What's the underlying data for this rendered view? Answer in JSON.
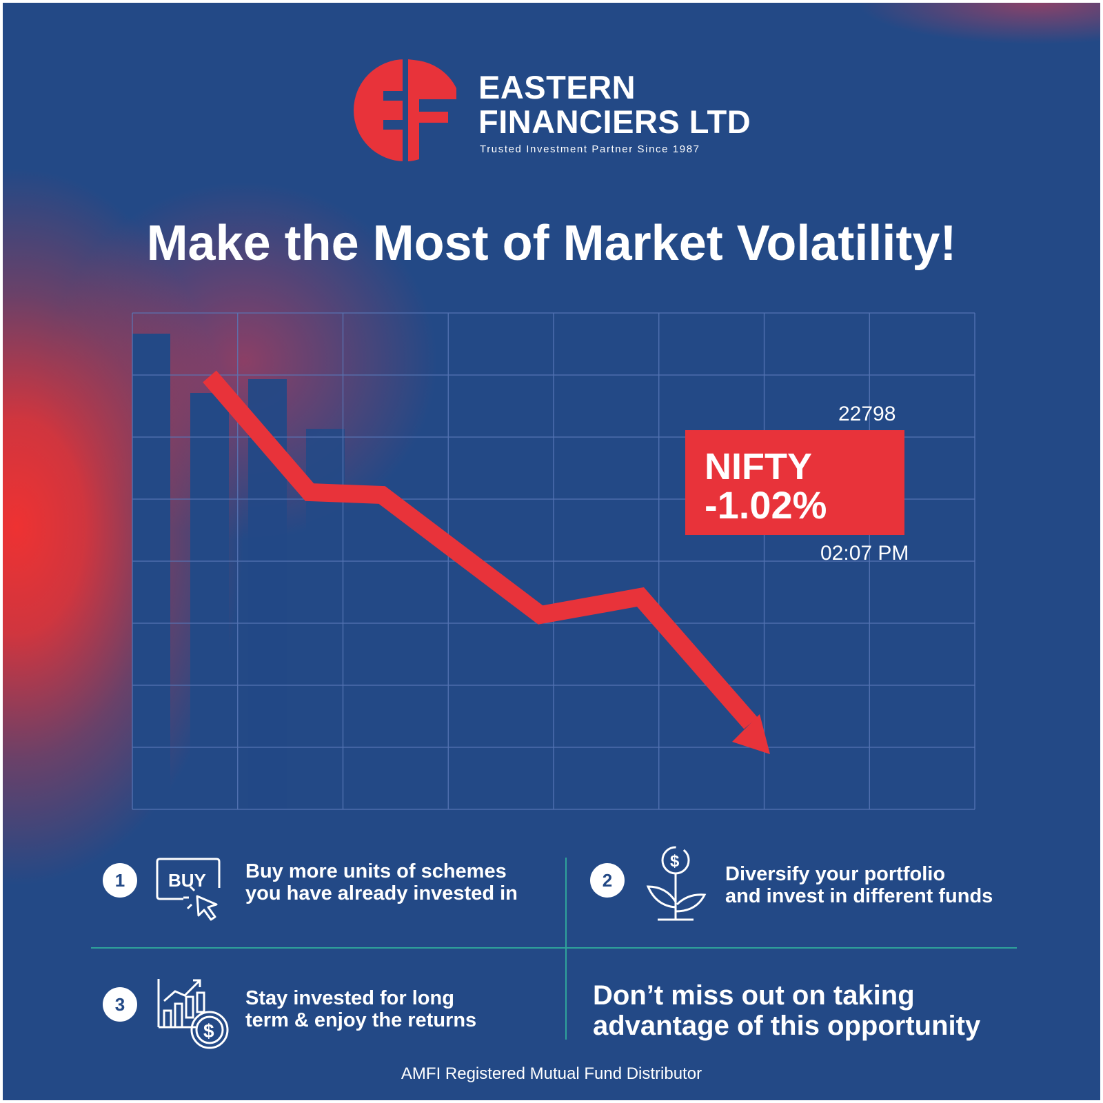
{
  "brand": {
    "name_line1": "EASTERN",
    "name_line2": "FINANCIERS LTD",
    "tagline": "Trusted Investment Partner Since 1987",
    "logo_icon": "ef-monogram-logo",
    "red": "#e8333a",
    "blue": "#234986"
  },
  "headline": "Make the Most of Market Volatility!",
  "market": {
    "index": "NIFTY",
    "change": "-1.02%",
    "value": "22798",
    "time": "02:07 PM",
    "trend_icon": "downward-arrow-line"
  },
  "tips": [
    {
      "number": "1",
      "icon": "buy-click-icon",
      "icon_text": "BUY",
      "line1": "Buy more units of schemes",
      "line2": "you have already invested in"
    },
    {
      "number": "2",
      "icon": "money-plant-icon",
      "line1": "Diversify your portfolio",
      "line2": "and invest in different funds"
    },
    {
      "number": "3",
      "icon": "growth-chart-dollar-icon",
      "line1": "Stay invested for long",
      "line2": "term & enjoy the returns"
    }
  ],
  "cta": {
    "line1": "Don’t miss out on taking",
    "line2": "advantage of this opportunity"
  },
  "footer": "AMFI Registered Mutual Fund Distributor",
  "accent_divider": "#2fa39a"
}
